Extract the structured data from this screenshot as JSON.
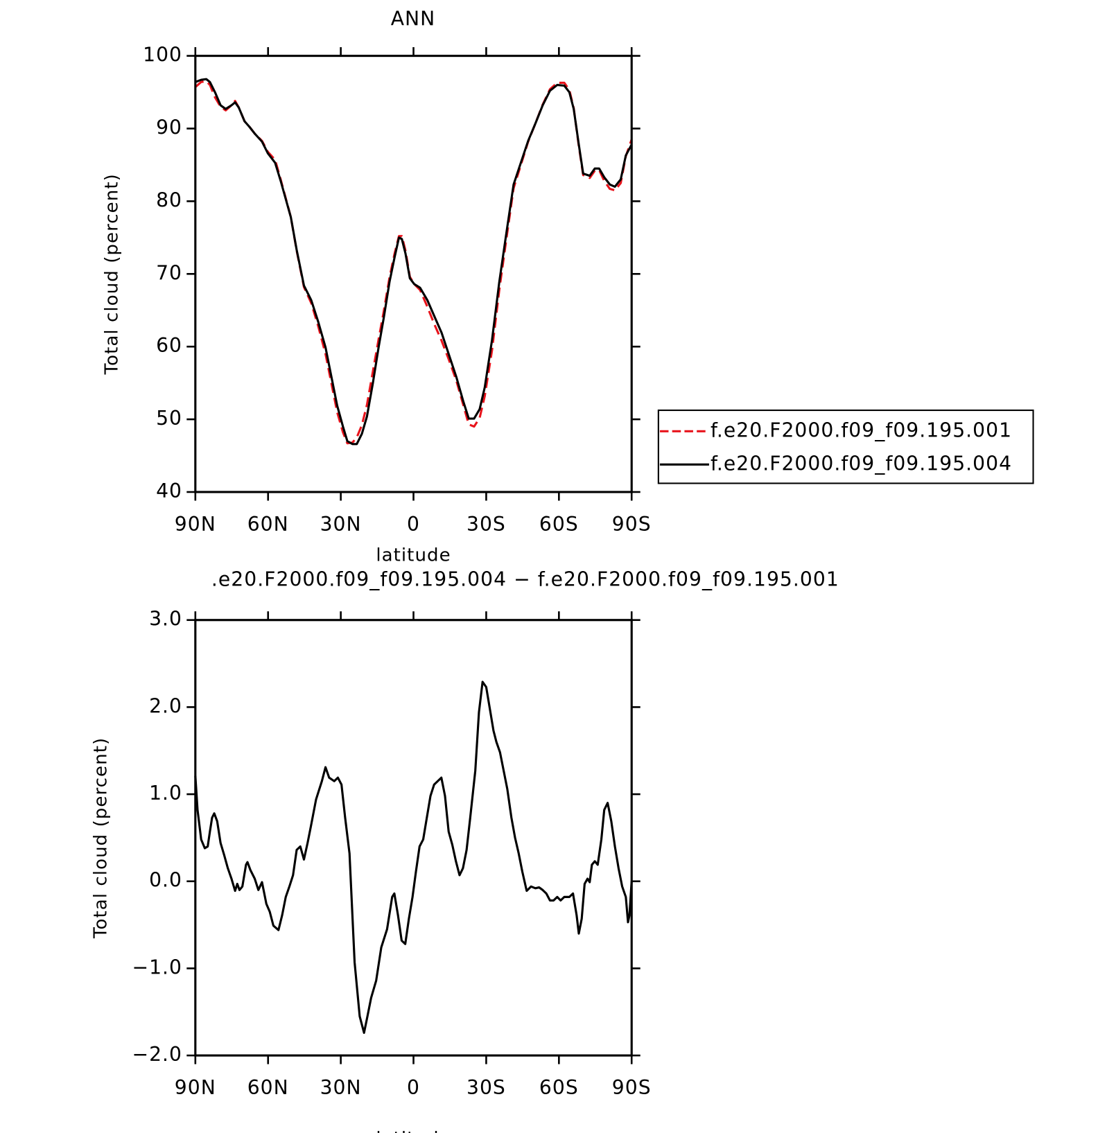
{
  "chart_data": [
    {
      "type": "line",
      "title": "ANN",
      "xlabel": "latitude",
      "ylabel": "Total cloud (percent)",
      "x": [
        90,
        87.6,
        85.5,
        84,
        81.9,
        79.6,
        77.5,
        75.1,
        73.6,
        72.1,
        69.7,
        67.6,
        65.5,
        62.5,
        60.1,
        57.1,
        54.8,
        52.7,
        50.6,
        48.2,
        45.2,
        42.2,
        39.3,
        36.3,
        33.9,
        31.5,
        29.1,
        27.3,
        25.2,
        23.4,
        21.3,
        19.2,
        16.8,
        14.4,
        12.3,
        9.9,
        7.8,
        6,
        4.8,
        3.3,
        1.5,
        -0.3,
        -2.7,
        -5.7,
        -8.7,
        -11.6,
        -14.6,
        -17.6,
        -20.6,
        -22.8,
        -25,
        -27.3,
        -29.4,
        -32.4,
        -35.4,
        -38.4,
        -41.3,
        -44.3,
        -47.3,
        -50.3,
        -53.3,
        -56.3,
        -59.3,
        -62.2,
        -64.3,
        -66.1,
        -68.2,
        -70,
        -72.7,
        -74.8,
        -76.6,
        -78.7,
        -81,
        -83.1,
        -85.5,
        -87.6,
        -90
      ],
      "series": [
        {
          "name": "f.e20.F2000.f09_f09.195.001",
          "color": "#e8141c",
          "line_style": "dashed",
          "values": [
            95.7,
            96.4,
            96.5,
            96.0,
            94.3,
            93.0,
            92.5,
            93.2,
            93.8,
            92.9,
            91.0,
            90.2,
            89.3,
            88.3,
            86.8,
            85.7,
            83.0,
            80.4,
            77.8,
            73.2,
            68.2,
            66.0,
            62.8,
            59.0,
            55.0,
            51.0,
            48.2,
            46.7,
            46.8,
            47.5,
            49.2,
            52.0,
            56.5,
            61.0,
            64.8,
            69.5,
            72.8,
            75.2,
            75.2,
            73.2,
            69.6,
            68.6,
            67.8,
            65.5,
            63.0,
            60.8,
            58.2,
            55.4,
            51.9,
            49.3,
            49.0,
            50.2,
            53.2,
            59.5,
            67.8,
            75.0,
            81.8,
            85.0,
            88.2,
            90.7,
            93.3,
            95.4,
            96.3,
            96.3,
            95.3,
            92.8,
            87.6,
            83.6,
            83.2,
            84.2,
            84.3,
            82.8,
            81.7,
            81.5,
            82.5,
            86.2,
            88.5
          ]
        },
        {
          "name": "f.e20.F2000.f09_f09.195.004",
          "color": "#000000",
          "line_style": "solid",
          "values": [
            96.4,
            96.7,
            96.8,
            96.4,
            95.0,
            93.2,
            92.7,
            93.2,
            93.6,
            92.9,
            91.0,
            90.2,
            89.3,
            88.2,
            86.6,
            85.3,
            82.8,
            80.3,
            77.8,
            73.3,
            68.4,
            66.4,
            63.4,
            59.9,
            55.9,
            51.9,
            49.0,
            47.0,
            46.6,
            46.6,
            48.0,
            50.4,
            54.9,
            59.9,
            63.9,
            68.9,
            72.3,
            75.0,
            74.8,
            72.8,
            69.4,
            68.6,
            68.1,
            66.4,
            64.1,
            61.9,
            58.9,
            55.9,
            52.4,
            50.1,
            50.1,
            51.4,
            54.4,
            60.9,
            68.9,
            75.8,
            82.3,
            85.3,
            88.3,
            90.7,
            93.2,
            95.2,
            96.0,
            95.9,
            95.0,
            92.7,
            87.8,
            83.8,
            83.5,
            84.5,
            84.5,
            83.3,
            82.3,
            82.0,
            83.0,
            86.3,
            87.8
          ]
        }
      ],
      "xlim": [
        90,
        -90
      ],
      "xticks": [
        {
          "value": 90,
          "label": "90N"
        },
        {
          "value": 60,
          "label": "60N"
        },
        {
          "value": 30,
          "label": "30N"
        },
        0,
        {
          "value": -30,
          "label": "30S"
        },
        {
          "value": -60,
          "label": "60S"
        },
        {
          "value": -90,
          "label": "90S"
        }
      ],
      "ylim": [
        40,
        100
      ],
      "yticks": [
        40,
        50,
        60,
        70,
        80,
        90,
        100
      ],
      "legend": "right"
    },
    {
      "type": "line",
      "title": ".e20.F2000.f09_f09.195.004 − f.e20.F2000.f09_f09.195.001",
      "xlabel": "latitude",
      "ylabel": "Total cloud (percent)",
      "x": [
        90,
        89.1,
        87.6,
        86.1,
        84.9,
        84,
        83.1,
        82.2,
        81,
        79.6,
        78.1,
        76.6,
        75.1,
        73.6,
        72.7,
        71.8,
        70.6,
        69.1,
        68.5,
        67.3,
        65.5,
        64,
        62.5,
        60.7,
        59.3,
        57.8,
        55.7,
        54.2,
        52.7,
        51.2,
        49.7,
        48.2,
        46.7,
        45.2,
        43.7,
        42.2,
        40.2,
        37.8,
        36.3,
        34.8,
        32.7,
        31.2,
        29.7,
        28.2,
        26.4,
        24.3,
        22.2,
        20.4,
        19,
        17.5,
        15.4,
        13.3,
        10.9,
        8.8,
        7.9,
        6.4,
        4.9,
        3.4,
        1.9,
        0.4,
        -1,
        -2.5,
        -4,
        -5.5,
        -7,
        -8.5,
        -10,
        -11.5,
        -13,
        -14.5,
        -16,
        -17.5,
        -19,
        -20.4,
        -21.9,
        -23.4,
        -25.5,
        -27,
        -28.5,
        -30,
        -31.5,
        -33,
        -34.2,
        -35.7,
        -37.2,
        -38.7,
        -40.4,
        -41.9,
        -43.4,
        -44.9,
        -46.7,
        -48.5,
        -50.3,
        -51.8,
        -53.3,
        -54.8,
        -56.3,
        -57.8,
        -59.3,
        -60.7,
        -62.2,
        -64.3,
        -65.8,
        -67.3,
        -68.2,
        -69.4,
        -70.6,
        -71.8,
        -72.7,
        -73.6,
        -74.8,
        -76,
        -77.5,
        -78.7,
        -80.1,
        -81.6,
        -83.1,
        -84.6,
        -86.1,
        -87.6,
        -88.5,
        -89.1,
        -90
      ],
      "series": [
        {
          "color": "#000000",
          "line_style": "solid",
          "values": [
            1.21,
            0.82,
            0.48,
            0.38,
            0.4,
            0.57,
            0.73,
            0.78,
            0.69,
            0.44,
            0.3,
            0.15,
            0.03,
            -0.11,
            -0.03,
            -0.1,
            -0.06,
            0.19,
            0.22,
            0.13,
            0.03,
            -0.1,
            -0.01,
            -0.26,
            -0.35,
            -0.51,
            -0.56,
            -0.39,
            -0.18,
            -0.06,
            0.07,
            0.36,
            0.4,
            0.25,
            0.44,
            0.65,
            0.94,
            1.15,
            1.31,
            1.19,
            1.15,
            1.19,
            1.11,
            0.73,
            0.32,
            -0.93,
            -1.55,
            -1.74,
            -1.55,
            -1.34,
            -1.14,
            -0.76,
            -0.55,
            -0.18,
            -0.14,
            -0.39,
            -0.68,
            -0.72,
            -0.43,
            -0.18,
            0.11,
            0.4,
            0.48,
            0.73,
            0.98,
            1.11,
            1.15,
            1.19,
            0.98,
            0.57,
            0.42,
            0.23,
            0.07,
            0.15,
            0.36,
            0.73,
            1.27,
            1.94,
            2.29,
            2.23,
            1.98,
            1.73,
            1.6,
            1.48,
            1.27,
            1.06,
            0.73,
            0.5,
            0.32,
            0.11,
            -0.11,
            -0.06,
            -0.08,
            -0.07,
            -0.1,
            -0.14,
            -0.22,
            -0.22,
            -0.18,
            -0.22,
            -0.18,
            -0.18,
            -0.14,
            -0.39,
            -0.6,
            -0.43,
            -0.03,
            0.03,
            -0.01,
            0.19,
            0.23,
            0.19,
            0.48,
            0.82,
            0.9,
            0.69,
            0.4,
            0.15,
            -0.06,
            -0.18,
            -0.47,
            -0.39,
            0.0
          ]
        }
      ],
      "xlim": [
        90,
        -90
      ],
      "xticks": [
        {
          "value": 90,
          "label": "90N"
        },
        {
          "value": 60,
          "label": "60N"
        },
        {
          "value": 30,
          "label": "30N"
        },
        0,
        {
          "value": -30,
          "label": "30S"
        },
        {
          "value": -60,
          "label": "60S"
        },
        {
          "value": -90,
          "label": "90S"
        }
      ],
      "ylim": [
        -2,
        3
      ],
      "yticks": [
        {
          "value": -2,
          "label": "−2.0"
        },
        {
          "value": -1,
          "label": "−1.0"
        },
        {
          "value": 0,
          "label": "0.0"
        },
        {
          "value": 1,
          "label": "1.0"
        },
        {
          "value": 2,
          "label": "2.0"
        },
        {
          "value": 3,
          "label": "3.0"
        }
      ]
    }
  ]
}
